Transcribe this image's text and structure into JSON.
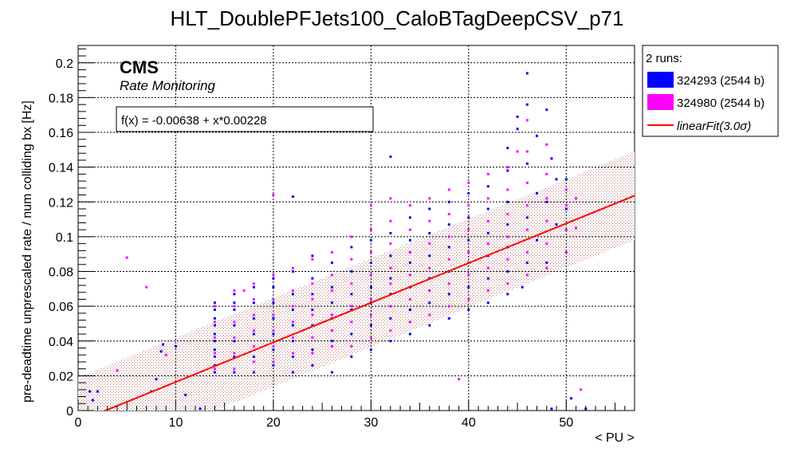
{
  "chart_data": {
    "type": "scatter",
    "title": "HLT_DoublePFJets100_CaloBTagDeepCSV_p71",
    "xlabel": "< PU >",
    "ylabel": "pre-deadtime unprescaled rate / num colliding bx [Hz]",
    "xlim": [
      0,
      57
    ],
    "ylim": [
      0,
      0.21
    ],
    "xticks": [
      0,
      10,
      20,
      30,
      40,
      50
    ],
    "xtick_labels": [
      "0",
      "10",
      "20",
      "30",
      "40",
      "50"
    ],
    "yticks": [
      0,
      0.02,
      0.04,
      0.06,
      0.08,
      0.1,
      0.12,
      0.14,
      0.16,
      0.18,
      0.2
    ],
    "ytick_labels": [
      "0",
      "0.02",
      "0.04",
      "0.06",
      "0.08",
      "0.1",
      "0.12",
      "0.14",
      "0.16",
      "0.18",
      "0.2"
    ],
    "grid": true,
    "legend_position": "right",
    "cms_label": "CMS",
    "cms_sublabel": "Rate Monitoring",
    "fit_box_text": "f(x) = -0.00638 + x*0.00228",
    "legend": {
      "header": "2 runs:",
      "entries": [
        {
          "label": "324293 (2544 b)",
          "color": "#0000ff"
        },
        {
          "label": "324980 (2544 b)",
          "color": "#ff00ff"
        },
        {
          "label": "linearFit(3.0σ)",
          "color": "#ff0000"
        }
      ]
    },
    "fit": {
      "intercept": -0.00638,
      "slope": 0.00228,
      "sigma_band": 0.0255,
      "x_range": [
        0,
        57
      ],
      "color": "#ff0000",
      "band_color": "#bb8888"
    },
    "series": [
      {
        "name": "324293 (2544 b)",
        "color": "#0000ff",
        "points": [
          [
            1.2,
            0.011
          ],
          [
            2.0,
            0.011
          ],
          [
            1.5,
            0.006
          ],
          [
            7.5,
            0.011
          ],
          [
            8.0,
            0.018
          ],
          [
            8.5,
            0.034
          ],
          [
            8.7,
            0.038
          ],
          [
            10.0,
            0.037
          ],
          [
            11.0,
            0.009
          ],
          [
            12.5,
            0.001
          ],
          [
            22.0,
            0.123
          ],
          [
            32.0,
            0.146
          ],
          [
            14,
            0.022
          ],
          [
            14,
            0.026
          ],
          [
            14,
            0.031
          ],
          [
            14,
            0.035
          ],
          [
            14,
            0.04
          ],
          [
            14,
            0.044
          ],
          [
            14,
            0.049
          ],
          [
            14,
            0.053
          ],
          [
            14,
            0.058
          ],
          [
            14,
            0.062
          ],
          [
            16,
            0.022
          ],
          [
            16,
            0.031
          ],
          [
            16,
            0.04
          ],
          [
            16,
            0.049
          ],
          [
            16,
            0.058
          ],
          [
            16,
            0.062
          ],
          [
            16,
            0.067
          ],
          [
            18,
            0.022
          ],
          [
            18,
            0.031
          ],
          [
            18,
            0.044
          ],
          [
            18,
            0.053
          ],
          [
            18,
            0.062
          ],
          [
            18,
            0.071
          ],
          [
            20,
            0.026
          ],
          [
            20,
            0.035
          ],
          [
            20,
            0.044
          ],
          [
            20,
            0.053
          ],
          [
            20,
            0.062
          ],
          [
            20,
            0.071
          ],
          [
            20,
            0.076
          ],
          [
            22,
            0.022
          ],
          [
            22,
            0.031
          ],
          [
            22,
            0.04
          ],
          [
            22,
            0.049
          ],
          [
            22,
            0.058
          ],
          [
            22,
            0.067
          ],
          [
            22,
            0.08
          ],
          [
            24,
            0.026
          ],
          [
            24,
            0.035
          ],
          [
            24,
            0.049
          ],
          [
            24,
            0.058
          ],
          [
            24,
            0.067
          ],
          [
            24,
            0.076
          ],
          [
            24,
            0.089
          ],
          [
            26,
            0.022
          ],
          [
            26,
            0.04
          ],
          [
            26,
            0.053
          ],
          [
            26,
            0.062
          ],
          [
            26,
            0.071
          ],
          [
            26,
            0.085
          ],
          [
            28,
            0.031
          ],
          [
            28,
            0.044
          ],
          [
            28,
            0.058
          ],
          [
            28,
            0.067
          ],
          [
            28,
            0.08
          ],
          [
            28,
            0.094
          ],
          [
            30,
            0.035
          ],
          [
            30,
            0.049
          ],
          [
            30,
            0.062
          ],
          [
            30,
            0.071
          ],
          [
            30,
            0.085
          ],
          [
            30,
            0.098
          ],
          [
            32,
            0.04
          ],
          [
            32,
            0.053
          ],
          [
            32,
            0.067
          ],
          [
            32,
            0.076
          ],
          [
            32,
            0.089
          ],
          [
            32,
            0.102
          ],
          [
            34,
            0.044
          ],
          [
            34,
            0.058
          ],
          [
            34,
            0.071
          ],
          [
            34,
            0.085
          ],
          [
            34,
            0.098
          ],
          [
            34,
            0.111
          ],
          [
            36,
            0.049
          ],
          [
            36,
            0.062
          ],
          [
            36,
            0.076
          ],
          [
            36,
            0.089
          ],
          [
            36,
            0.102
          ],
          [
            36,
            0.116
          ],
          [
            38,
            0.053
          ],
          [
            38,
            0.067
          ],
          [
            38,
            0.08
          ],
          [
            38,
            0.094
          ],
          [
            38,
            0.107
          ],
          [
            38,
            0.12
          ],
          [
            40,
            0.058
          ],
          [
            40,
            0.071
          ],
          [
            40,
            0.085
          ],
          [
            40,
            0.098
          ],
          [
            40,
            0.111
          ],
          [
            40,
            0.125
          ],
          [
            42,
            0.062
          ],
          [
            42,
            0.076
          ],
          [
            42,
            0.089
          ],
          [
            42,
            0.102
          ],
          [
            42,
            0.116
          ],
          [
            42,
            0.129
          ],
          [
            44,
            0.067
          ],
          [
            44,
            0.08
          ],
          [
            44,
            0.094
          ],
          [
            44,
            0.107
          ],
          [
            44,
            0.12
          ],
          [
            44,
            0.138
          ],
          [
            44,
            0.151
          ],
          [
            45,
            0.162
          ],
          [
            45,
            0.169
          ],
          [
            46,
            0.194
          ],
          [
            46,
            0.176
          ],
          [
            45.5,
            0.071
          ],
          [
            46,
            0.085
          ],
          [
            46,
            0.111
          ],
          [
            46,
            0.142
          ],
          [
            47,
            0.098
          ],
          [
            47,
            0.125
          ],
          [
            47,
            0.158
          ],
          [
            48,
            0.085
          ],
          [
            48,
            0.12
          ],
          [
            48,
            0.173
          ],
          [
            48.5,
            0.145
          ],
          [
            49,
            0.107
          ],
          [
            49,
            0.133
          ],
          [
            50,
            0.116
          ],
          [
            50,
            0.133
          ],
          [
            48.5,
            0.001
          ],
          [
            50.5,
            0.007
          ],
          [
            52,
            0.001
          ]
        ]
      },
      {
        "name": "324980 (2544 b)",
        "color": "#ff00ff",
        "points": [
          [
            5.0,
            0.088
          ],
          [
            7.0,
            0.071
          ],
          [
            4.0,
            0.023
          ],
          [
            9.0,
            0.032
          ],
          [
            14,
            0.024
          ],
          [
            14,
            0.033
          ],
          [
            14,
            0.042
          ],
          [
            14,
            0.051
          ],
          [
            14,
            0.06
          ],
          [
            16,
            0.024
          ],
          [
            16,
            0.033
          ],
          [
            16,
            0.042
          ],
          [
            16,
            0.051
          ],
          [
            16,
            0.06
          ],
          [
            16,
            0.069
          ],
          [
            18,
            0.028
          ],
          [
            18,
            0.037
          ],
          [
            18,
            0.046
          ],
          [
            18,
            0.055
          ],
          [
            18,
            0.064
          ],
          [
            18,
            0.073
          ],
          [
            20,
            0.028
          ],
          [
            20,
            0.037
          ],
          [
            20,
            0.046
          ],
          [
            20,
            0.055
          ],
          [
            20,
            0.064
          ],
          [
            20,
            0.078
          ],
          [
            22,
            0.033
          ],
          [
            22,
            0.042
          ],
          [
            22,
            0.051
          ],
          [
            22,
            0.06
          ],
          [
            22,
            0.069
          ],
          [
            22,
            0.082
          ],
          [
            24,
            0.033
          ],
          [
            24,
            0.042
          ],
          [
            24,
            0.055
          ],
          [
            24,
            0.064
          ],
          [
            24,
            0.073
          ],
          [
            24,
            0.087
          ],
          [
            26,
            0.037
          ],
          [
            26,
            0.046
          ],
          [
            26,
            0.055
          ],
          [
            26,
            0.069
          ],
          [
            26,
            0.078
          ],
          [
            26,
            0.091
          ],
          [
            28,
            0.037
          ],
          [
            28,
            0.051
          ],
          [
            28,
            0.06
          ],
          [
            28,
            0.073
          ],
          [
            28,
            0.087
          ],
          [
            28,
            0.1
          ],
          [
            30,
            0.042
          ],
          [
            30,
            0.055
          ],
          [
            30,
            0.064
          ],
          [
            30,
            0.078
          ],
          [
            30,
            0.091
          ],
          [
            30,
            0.104
          ],
          [
            30,
            0.118
          ],
          [
            32,
            0.046
          ],
          [
            32,
            0.06
          ],
          [
            32,
            0.073
          ],
          [
            32,
            0.082
          ],
          [
            32,
            0.096
          ],
          [
            32,
            0.109
          ],
          [
            32,
            0.122
          ],
          [
            34,
            0.051
          ],
          [
            34,
            0.064
          ],
          [
            34,
            0.078
          ],
          [
            34,
            0.091
          ],
          [
            34,
            0.104
          ],
          [
            34,
            0.118
          ],
          [
            36,
            0.055
          ],
          [
            36,
            0.069
          ],
          [
            36,
            0.082
          ],
          [
            36,
            0.096
          ],
          [
            36,
            0.109
          ],
          [
            36,
            0.122
          ],
          [
            38,
            0.06
          ],
          [
            38,
            0.073
          ],
          [
            38,
            0.087
          ],
          [
            38,
            0.1
          ],
          [
            38,
            0.113
          ],
          [
            38,
            0.127
          ],
          [
            40,
            0.064
          ],
          [
            40,
            0.078
          ],
          [
            40,
            0.091
          ],
          [
            40,
            0.104
          ],
          [
            40,
            0.118
          ],
          [
            40,
            0.131
          ],
          [
            42,
            0.069
          ],
          [
            42,
            0.082
          ],
          [
            42,
            0.096
          ],
          [
            42,
            0.109
          ],
          [
            42,
            0.122
          ],
          [
            42,
            0.136
          ],
          [
            44,
            0.073
          ],
          [
            44,
            0.087
          ],
          [
            44,
            0.1
          ],
          [
            44,
            0.113
          ],
          [
            44,
            0.127
          ],
          [
            44,
            0.14
          ],
          [
            46,
            0.078
          ],
          [
            46,
            0.091
          ],
          [
            46,
            0.104
          ],
          [
            46,
            0.118
          ],
          [
            46,
            0.131
          ],
          [
            46,
            0.149
          ],
          [
            48,
            0.082
          ],
          [
            48,
            0.096
          ],
          [
            48,
            0.109
          ],
          [
            48,
            0.122
          ],
          [
            48,
            0.136
          ],
          [
            48,
            0.153
          ],
          [
            50,
            0.091
          ],
          [
            50,
            0.104
          ],
          [
            50,
            0.118
          ],
          [
            50,
            0.127
          ],
          [
            51,
            0.105
          ],
          [
            51,
            0.122
          ],
          [
            46,
            0.167
          ],
          [
            45,
            0.149
          ],
          [
            51.5,
            0.012
          ],
          [
            39,
            0.018
          ],
          [
            20,
            0.124
          ],
          [
            17,
            0.069
          ]
        ]
      }
    ]
  }
}
